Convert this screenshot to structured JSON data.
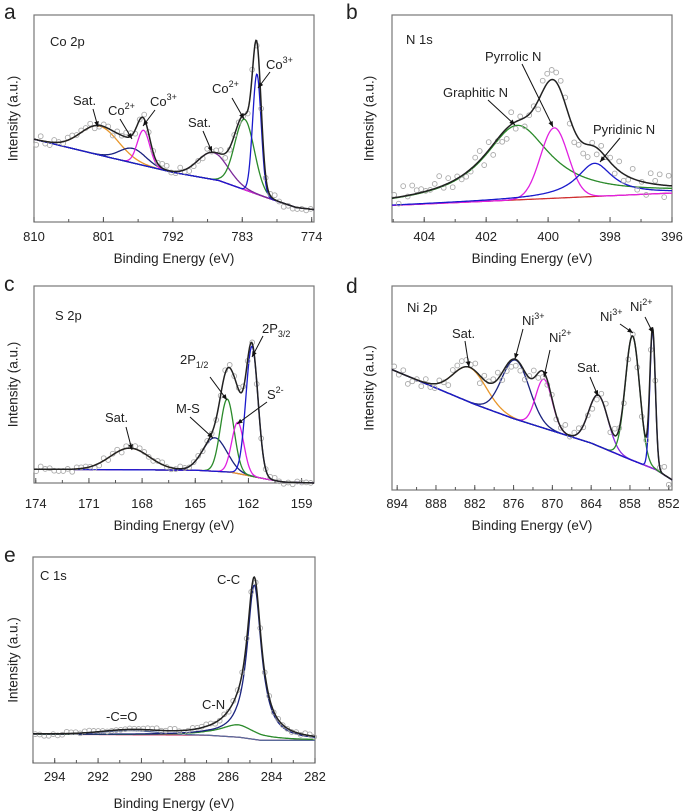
{
  "chart_data": [
    {
      "panel": "a",
      "type": "line",
      "title": "Co 2p",
      "xlabel": "Binding Energy (eV)",
      "ylabel": "Intensity (a.u.)",
      "xlim": [
        810,
        773.7
      ],
      "ylim": [
        0,
        1
      ],
      "xticks": [
        810,
        801,
        792,
        783,
        774
      ],
      "minor_step": 4.5,
      "envelope_color": "#222222",
      "background": {
        "color": "#7b2a9a",
        "points": [
          [
            810,
            0.4
          ],
          [
            800,
            0.31
          ],
          [
            792,
            0.24
          ],
          [
            786,
            0.2
          ],
          [
            780,
            0.12
          ],
          [
            776,
            0.07
          ],
          [
            773.7,
            0.06
          ]
        ]
      },
      "components": [
        {
          "center": 801.5,
          "height": 0.14,
          "fwhm": 5.8,
          "shape": "gaussian",
          "color": "#e8962a"
        },
        {
          "center": 797.2,
          "height": 0.07,
          "fwhm": 4.0,
          "shape": "gaussian",
          "color": "#1a237e"
        },
        {
          "center": 795.8,
          "height": 0.17,
          "fwhm": 1.9,
          "shape": "gaussian",
          "color": "#e020e0"
        },
        {
          "center": 786.8,
          "height": 0.13,
          "fwhm": 4.6,
          "shape": "gaussian",
          "color": "#7b2a9a"
        },
        {
          "center": 782.7,
          "height": 0.34,
          "fwhm": 3.0,
          "shape": "gaussian",
          "color": "#2a8a2a"
        },
        {
          "center": 781.1,
          "height": 0.58,
          "fwhm": 1.3,
          "shape": "gaussian",
          "color": "#1a1acc"
        }
      ],
      "annotations": [
        {
          "text": "Sat.",
          "sup": "",
          "sub": ""
        },
        {
          "text": "Co",
          "sup": "2+",
          "sub": ""
        },
        {
          "text": "Co",
          "sup": "3+",
          "sub": ""
        },
        {
          "text": "Sat.",
          "sup": "",
          "sub": ""
        },
        {
          "text": "Co",
          "sup": "2+",
          "sub": ""
        },
        {
          "text": "Co",
          "sup": "3+",
          "sub": ""
        }
      ]
    },
    {
      "panel": "b",
      "type": "line",
      "title": "N 1s",
      "xlabel": "Binding Energy (eV)",
      "ylabel": "Intensity (a.u.)",
      "xlim": [
        405.04,
        396
      ],
      "ylim": [
        0,
        1
      ],
      "xticks": [
        404,
        402,
        400,
        398,
        396
      ],
      "minor_step": 1,
      "envelope_color": "#222222",
      "background": {
        "color": "#d03030",
        "points": [
          [
            405.04,
            0.08
          ],
          [
            396,
            0.14
          ]
        ]
      },
      "components": [
        {
          "center": 401.0,
          "height": 0.36,
          "fwhm": 2.6,
          "shape": "lorentzian",
          "color": "#2a8a2a"
        },
        {
          "center": 399.8,
          "height": 0.34,
          "fwhm": 1.05,
          "shape": "gaussian",
          "color": "#e020e0"
        },
        {
          "center": 398.5,
          "height": 0.16,
          "fwhm": 1.4,
          "shape": "lorentzian",
          "color": "#1a1acc"
        }
      ],
      "annotations": [
        {
          "text": "Graphitic N",
          "sup": "",
          "sub": ""
        },
        {
          "text": "Pyrrolic N",
          "sup": "",
          "sub": ""
        },
        {
          "text": "Pyridinic N",
          "sup": "",
          "sub": ""
        }
      ]
    },
    {
      "panel": "c",
      "type": "line",
      "title": "S 2p",
      "xlabel": "Binding Energy (eV)",
      "ylabel": "Intensity (a.u.)",
      "xlim": [
        174.1,
        158.3
      ],
      "ylim": [
        0,
        1
      ],
      "xticks": [
        174,
        171,
        168,
        165,
        162,
        159
      ],
      "minor_step": 1.5,
      "envelope_color": "#222222",
      "background": {
        "color": "#7b2a9a",
        "points": [
          [
            174.1,
            0.07
          ],
          [
            165,
            0.065
          ],
          [
            163,
            0.055
          ],
          [
            161,
            0.02
          ],
          [
            160,
            0.005
          ],
          [
            158.3,
            0.0
          ]
        ]
      },
      "components": [
        {
          "center": 168.7,
          "height": 0.11,
          "fwhm": 2.6,
          "shape": "gaussian",
          "color": "#e8962a"
        },
        {
          "center": 163.9,
          "height": 0.17,
          "fwhm": 1.6,
          "shape": "gaussian",
          "color": "#1a237e"
        },
        {
          "center": 163.2,
          "height": 0.37,
          "fwhm": 0.9,
          "shape": "gaussian",
          "color": "#2a8a2a"
        },
        {
          "center": 162.6,
          "height": 0.26,
          "fwhm": 0.8,
          "shape": "gaussian",
          "color": "#e020e0"
        },
        {
          "center": 161.8,
          "height": 0.66,
          "fwhm": 0.8,
          "shape": "gaussian",
          "color": "#1a1acc"
        }
      ],
      "annotations": [
        {
          "text": "Sat.",
          "sup": "",
          "sub": ""
        },
        {
          "text": "M-S",
          "sup": "",
          "sub": ""
        },
        {
          "text": "2P",
          "sup": "",
          "sub": "1/2"
        },
        {
          "text": "S",
          "sup": "2-",
          "sub": ""
        },
        {
          "text": "2P",
          "sup": "",
          "sub": "3/2"
        }
      ]
    },
    {
      "panel": "d",
      "type": "line",
      "title": "Ni 2p",
      "xlabel": "Binding Energy (eV)",
      "ylabel": "Intensity (a.u.)",
      "xlim": [
        894.8,
        851.5
      ],
      "ylim": [
        0,
        1
      ],
      "xticks": [
        894,
        888,
        882,
        876,
        870,
        864,
        858,
        852
      ],
      "minor_step": 3,
      "envelope_color": "#222222",
      "background": {
        "color": "#8a2be2",
        "points": [
          [
            894.8,
            0.59
          ],
          [
            888,
            0.5
          ],
          [
            882,
            0.42
          ],
          [
            876,
            0.35
          ],
          [
            870,
            0.29
          ],
          [
            864,
            0.23
          ],
          [
            858,
            0.15
          ],
          [
            854,
            0.1
          ],
          [
            851.5,
            0.05
          ]
        ]
      },
      "components": [
        {
          "center": 882.8,
          "height": 0.17,
          "fwhm": 6.0,
          "shape": "gaussian",
          "color": "#e8962a"
        },
        {
          "center": 875.7,
          "height": 0.29,
          "fwhm": 5.0,
          "shape": "gaussian",
          "color": "#1a237e"
        },
        {
          "center": 871.3,
          "height": 0.24,
          "fwhm": 3.0,
          "shape": "gaussian",
          "color": "#e020e0"
        },
        {
          "center": 862.9,
          "height": 0.25,
          "fwhm": 3.5,
          "shape": "gaussian",
          "color": "#8a2be2"
        },
        {
          "center": 857.6,
          "height": 0.61,
          "fwhm": 2.6,
          "shape": "gaussian",
          "color": "#2a8a2a"
        },
        {
          "center": 854.5,
          "height": 0.68,
          "fwhm": 1.0,
          "shape": "gaussian",
          "color": "#1a1acc"
        }
      ],
      "annotations": [
        {
          "text": "Sat.",
          "sup": "",
          "sub": ""
        },
        {
          "text": "Ni",
          "sup": "3+",
          "sub": ""
        },
        {
          "text": "Ni",
          "sup": "2+",
          "sub": ""
        },
        {
          "text": "Sat.",
          "sup": "",
          "sub": ""
        },
        {
          "text": "Ni",
          "sup": "3+",
          "sub": ""
        },
        {
          "text": "Ni",
          "sup": "2+",
          "sub": ""
        }
      ]
    },
    {
      "panel": "e",
      "type": "line",
      "title": "C 1s",
      "xlabel": "Binding Energy (eV)",
      "ylabel": "Intensity (a.u.)",
      "xlim": [
        295,
        282
      ],
      "ylim": [
        0,
        1
      ],
      "xticks": [
        294,
        292,
        290,
        288,
        286,
        284,
        282
      ],
      "minor_step": 1,
      "envelope_color": "#222222",
      "background": {
        "color": "#d04070",
        "points": [
          [
            295,
            0.14
          ],
          [
            287,
            0.135
          ],
          [
            285.5,
            0.125
          ],
          [
            284.5,
            0.11
          ],
          [
            282,
            0.11
          ]
        ]
      },
      "components": [
        {
          "center": 290.5,
          "height": 0.02,
          "fwhm": 3.0,
          "shape": "gaussian",
          "color": "#5a6a9a"
        },
        {
          "center": 285.55,
          "height": 0.06,
          "fwhm": 2.0,
          "shape": "lorentzian",
          "color": "#2a8a2a"
        },
        {
          "center": 284.8,
          "height": 0.75,
          "fwhm": 0.8,
          "shape": "lorentzian",
          "color": "#1a237e"
        }
      ],
      "annotations": [
        {
          "text": "C-C",
          "sup": "",
          "sub": ""
        },
        {
          "text": "C-N",
          "sup": "",
          "sub": ""
        },
        {
          "text": "-C=O",
          "sup": "",
          "sub": ""
        }
      ]
    }
  ]
}
